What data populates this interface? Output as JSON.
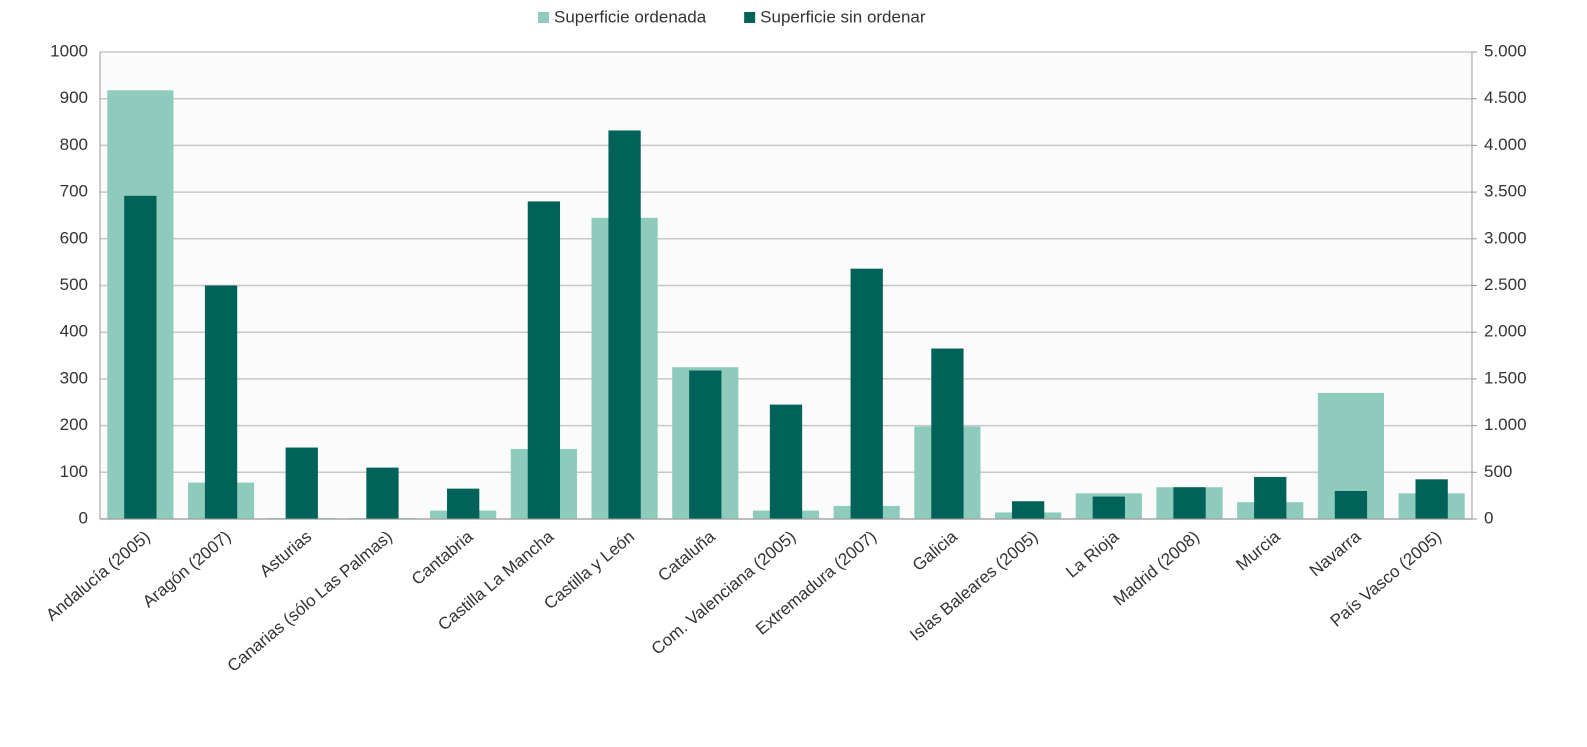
{
  "chart_data": {
    "type": "bar",
    "categories": [
      "Andalucía (2005)",
      "Aragón (2007)",
      "Asturias",
      "Canarias (sólo Las Palmas)",
      "Cantabria",
      "Castilla La Mancha",
      "Castilla y León",
      "Cataluña",
      "Com. Valenciana (2005)",
      "Extremadura (2007)",
      "Galicia",
      "Islas Baleares (2005)",
      "La Rioja",
      "Madrid (2008)",
      "Murcia",
      "Navarra",
      "País Vasco (2005)"
    ],
    "series": [
      {
        "name": "Superficie ordenada",
        "color": "#8ecbbd",
        "values": [
          918,
          78,
          2,
          2,
          18,
          150,
          645,
          325,
          18,
          28,
          198,
          14,
          55,
          68,
          36,
          270,
          55
        ]
      },
      {
        "name": "Superficie sin ordenar",
        "color": "#006259",
        "axis": "y2",
        "values": [
          3460,
          2500,
          765,
          550,
          325,
          3400,
          4160,
          1590,
          1225,
          2680,
          1825,
          190,
          240,
          340,
          450,
          300,
          425
        ]
      }
    ],
    "ylim": [
      0,
      1000
    ],
    "yticks": [
      0,
      100,
      200,
      300,
      400,
      500,
      600,
      700,
      800,
      900,
      1000
    ],
    "y2lim": [
      0,
      5000
    ],
    "y2ticks": [
      0,
      500,
      {
        "value": 1000,
        "label": "1.000"
      },
      {
        "value": 1500,
        "label": "1.500"
      },
      {
        "value": 2000,
        "label": "2.000"
      },
      {
        "value": 2500,
        "label": "2.500"
      },
      {
        "value": 3000,
        "label": "3.000"
      },
      {
        "value": 3500,
        "label": "3.500"
      },
      {
        "value": 4000,
        "label": "4.000"
      },
      {
        "value": 4500,
        "label": "4.500"
      },
      {
        "value": 5000,
        "label": "5.000"
      }
    ],
    "grid": true,
    "legend": "top"
  }
}
